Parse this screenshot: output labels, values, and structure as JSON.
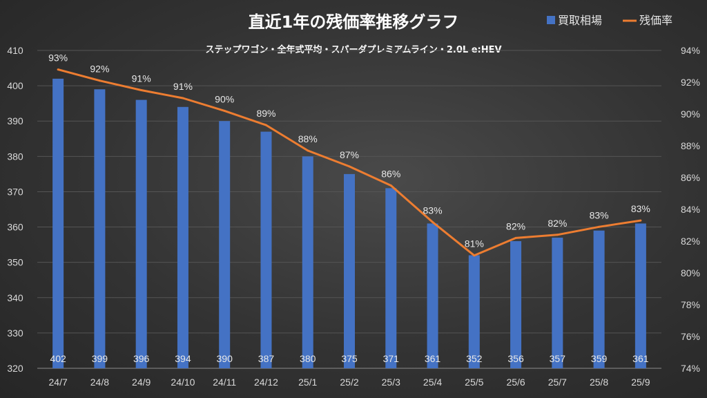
{
  "chart_data": {
    "type": "bar",
    "title": "直近1年の残価率推移グラフ",
    "subtitle": "ステップワゴン・全年式平均・スパーダプレミアムライン・2.0L e:HEV",
    "categories": [
      "24/7",
      "24/8",
      "24/9",
      "24/10",
      "24/11",
      "24/12",
      "25/1",
      "25/2",
      "25/3",
      "25/4",
      "25/5",
      "25/6",
      "25/7",
      "25/8",
      "25/9"
    ],
    "series": [
      {
        "name": "買取相場",
        "type": "bar",
        "axis": "left",
        "color": "#4472c4",
        "values": [
          402,
          399,
          396,
          394,
          390,
          387,
          380,
          375,
          371,
          361,
          352,
          356,
          357,
          359,
          361
        ],
        "labels": [
          "402",
          "399",
          "396",
          "394",
          "390",
          "387",
          "380",
          "375",
          "371",
          "361",
          "352",
          "356",
          "357",
          "359",
          "361"
        ]
      },
      {
        "name": "残価率",
        "type": "line",
        "axis": "right",
        "color": "#ed7d31",
        "values": [
          92.8,
          92.1,
          91.5,
          91.0,
          90.2,
          89.3,
          87.7,
          86.7,
          85.5,
          83.2,
          81.1,
          82.2,
          82.4,
          82.9,
          83.3
        ],
        "labels": [
          "93%",
          "92%",
          "91%",
          "91%",
          "90%",
          "89%",
          "88%",
          "87%",
          "86%",
          "83%",
          "81%",
          "82%",
          "82%",
          "83%",
          "83%"
        ]
      }
    ],
    "left_axis": {
      "min": 320,
      "max": 410,
      "step": 10,
      "ticks": [
        "320",
        "330",
        "340",
        "350",
        "360",
        "370",
        "380",
        "390",
        "400",
        "410"
      ]
    },
    "right_axis": {
      "min": 74,
      "max": 94,
      "step": 2,
      "ticks": [
        "74%",
        "76%",
        "78%",
        "80%",
        "82%",
        "84%",
        "86%",
        "88%",
        "90%",
        "92%",
        "94%"
      ]
    },
    "grid": true,
    "legend": {
      "position": "top-right",
      "entries": [
        "買取相場",
        "残価率"
      ]
    },
    "xlabel": "",
    "ylabel": ""
  }
}
